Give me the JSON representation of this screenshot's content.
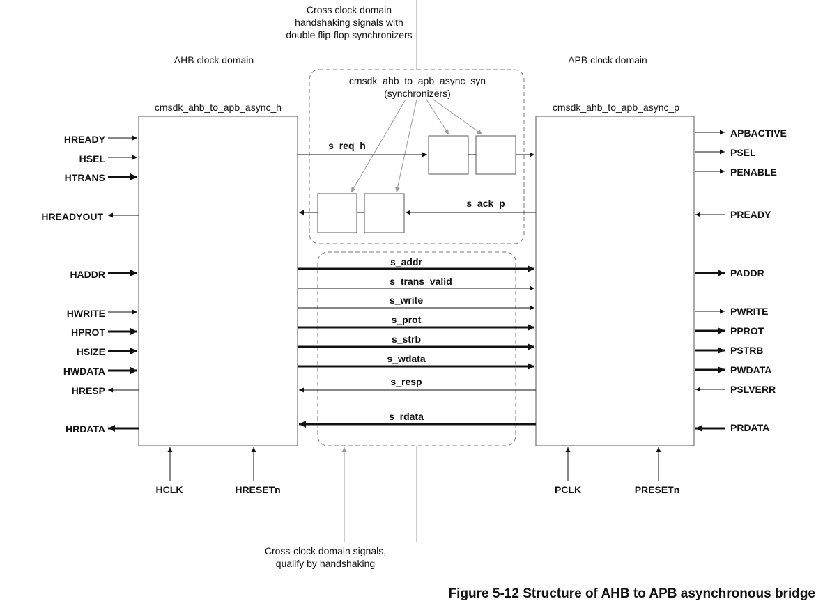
{
  "notes": {
    "top": [
      "Cross clock domain",
      "handshaking signals with",
      "double flip-flop synchronizers"
    ],
    "bottom": [
      "Cross-clock domain signals,",
      "qualify by handshaking"
    ]
  },
  "domains": {
    "ahb": "AHB clock domain",
    "apb": "APB clock domain"
  },
  "blocks": {
    "ahb_module": "cmsdk_ahb_to_apb_async_h",
    "apb_module": "cmsdk_ahb_to_apb_async_p",
    "sync_module": [
      "cmsdk_ahb_to_apb_async_syn",
      "(synchronizers)"
    ]
  },
  "ahb_signals": {
    "hready": "HREADY",
    "hsel": "HSEL",
    "htrans": "HTRANS",
    "hreadyout": "HREADYOUT",
    "haddr": "HADDR",
    "hwrite": "HWRITE",
    "hprot": "HPROT",
    "hsize": "HSIZE",
    "hwdata": "HWDATA",
    "hresp": "HRESP",
    "hrdata": "HRDATA",
    "hclk": "HCLK",
    "hresetn": "HRESETn"
  },
  "apb_signals": {
    "apbactive": "APBACTIVE",
    "psel": "PSEL",
    "penable": "PENABLE",
    "pready": "PREADY",
    "paddr": "PADDR",
    "pwrite": "PWRITE",
    "pprot": "PPROT",
    "pstrb": "PSTRB",
    "pwdata": "PWDATA",
    "pslverr": "PSLVERR",
    "prdata": "PRDATA",
    "pclk": "PCLK",
    "presetn": "PRESETn"
  },
  "internal_signals": {
    "s_req_h": "s_req_h",
    "s_ack_p": "s_ack_p",
    "s_addr": "s_addr",
    "s_trans_valid": "s_trans_valid",
    "s_write": "s_write",
    "s_prot": "s_prot",
    "s_strb": "s_strb",
    "s_wdata": "s_wdata",
    "s_resp": "s_resp",
    "s_rdata": "s_rdata"
  },
  "caption": "Figure 5-12 Structure of AHB to APB asynchronous bridge"
}
